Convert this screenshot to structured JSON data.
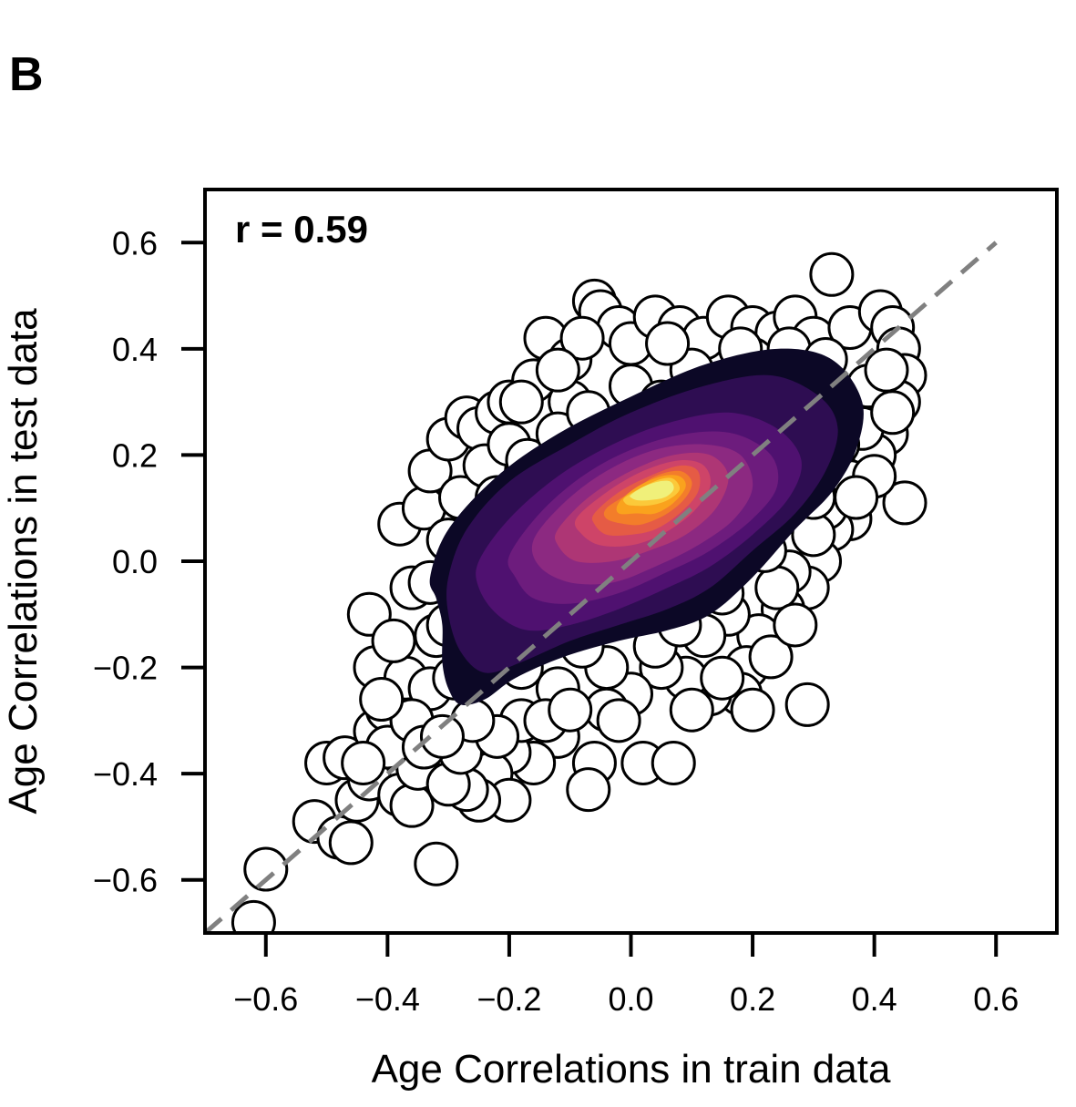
{
  "panel_label": "B",
  "chart_data": {
    "type": "scatter",
    "title": "",
    "xlabel": "Age Correlations in train data",
    "ylabel": "Age Correlations in test data",
    "xlim": [
      -0.7,
      0.7
    ],
    "ylim": [
      -0.7,
      0.7
    ],
    "xticks": [
      -0.6,
      -0.4,
      -0.2,
      0.0,
      0.2,
      0.4,
      0.6
    ],
    "yticks": [
      -0.6,
      -0.4,
      -0.2,
      0.0,
      0.2,
      0.4,
      0.6
    ],
    "xtick_labels": [
      "−0.6",
      "−0.4",
      "−0.2",
      "0.0",
      "0.2",
      "0.4",
      "0.6"
    ],
    "ytick_labels": [
      "−0.6",
      "−0.4",
      "−0.2",
      "0.0",
      "0.2",
      "0.4",
      "0.6"
    ],
    "annotation": "r = 0.59",
    "reference_line": {
      "x": [
        -0.7,
        0.6
      ],
      "y": [
        -0.7,
        0.6
      ],
      "style": "dashed",
      "color": "#808080"
    },
    "marker": {
      "face": "#ffffff",
      "edge": "#000000"
    },
    "grid": false,
    "density_colormap": [
      "#0c0826",
      "#2e0d52",
      "#4f1170",
      "#6d1c7d",
      "#8c2981",
      "#ae3675",
      "#ce4468",
      "#e55b45",
      "#f37d2a",
      "#faa21d",
      "#fbc93a",
      "#f0f07a"
    ],
    "points": [
      [
        -0.62,
        -0.68
      ],
      [
        -0.6,
        -0.58
      ],
      [
        -0.52,
        -0.49
      ],
      [
        -0.48,
        -0.52
      ],
      [
        -0.46,
        -0.53
      ],
      [
        -0.5,
        -0.38
      ],
      [
        -0.47,
        -0.37
      ],
      [
        -0.45,
        -0.45
      ],
      [
        -0.43,
        -0.41
      ],
      [
        -0.42,
        -0.32
      ],
      [
        -0.4,
        -0.28
      ],
      [
        -0.42,
        -0.2
      ],
      [
        -0.43,
        -0.1
      ],
      [
        -0.38,
        -0.44
      ],
      [
        -0.36,
        -0.46
      ],
      [
        -0.32,
        -0.57
      ],
      [
        -0.35,
        -0.39
      ],
      [
        -0.37,
        -0.22
      ],
      [
        -0.36,
        -0.05
      ],
      [
        -0.38,
        0.07
      ],
      [
        -0.34,
        0.1
      ],
      [
        -0.33,
        0.17
      ],
      [
        -0.3,
        0.23
      ],
      [
        -0.27,
        0.27
      ],
      [
        -0.25,
        0.25
      ],
      [
        -0.22,
        0.28
      ],
      [
        -0.2,
        0.3
      ],
      [
        -0.16,
        0.34
      ],
      [
        -0.14,
        0.42
      ],
      [
        -0.1,
        0.38
      ],
      [
        -0.06,
        0.49
      ],
      [
        -0.05,
        0.47
      ],
      [
        -0.02,
        0.44
      ],
      [
        0.0,
        0.41
      ],
      [
        0.04,
        0.46
      ],
      [
        0.08,
        0.44
      ],
      [
        0.12,
        0.42
      ],
      [
        0.16,
        0.46
      ],
      [
        0.2,
        0.44
      ],
      [
        0.24,
        0.43
      ],
      [
        0.27,
        0.46
      ],
      [
        0.3,
        0.42
      ],
      [
        0.33,
        0.54
      ],
      [
        0.36,
        0.44
      ],
      [
        0.41,
        0.47
      ],
      [
        0.43,
        0.44
      ],
      [
        0.44,
        0.4
      ],
      [
        0.45,
        0.35
      ],
      [
        0.44,
        0.3
      ],
      [
        0.42,
        0.24
      ],
      [
        0.4,
        0.2
      ],
      [
        0.45,
        0.11
      ],
      [
        0.36,
        0.08
      ],
      [
        0.33,
        0.06
      ],
      [
        0.31,
        0.0
      ],
      [
        0.29,
        -0.05
      ],
      [
        0.25,
        -0.09
      ],
      [
        0.21,
        -0.14
      ],
      [
        0.19,
        -0.2
      ],
      [
        0.18,
        -0.25
      ],
      [
        0.2,
        -0.28
      ],
      [
        0.29,
        -0.27
      ],
      [
        0.13,
        -0.25
      ],
      [
        0.09,
        -0.22
      ],
      [
        0.05,
        -0.2
      ],
      [
        0.0,
        -0.25
      ],
      [
        -0.04,
        -0.28
      ],
      [
        -0.06,
        -0.38
      ],
      [
        -0.07,
        -0.43
      ],
      [
        0.02,
        -0.38
      ],
      [
        0.07,
        -0.38
      ],
      [
        -0.12,
        -0.33
      ],
      [
        -0.16,
        -0.38
      ],
      [
        -0.2,
        -0.36
      ],
      [
        -0.23,
        -0.4
      ],
      [
        -0.2,
        -0.45
      ],
      [
        -0.25,
        -0.45
      ],
      [
        -0.27,
        -0.43
      ],
      [
        -0.3,
        -0.42
      ],
      [
        -0.28,
        -0.36
      ],
      [
        -0.3,
        -0.28
      ],
      [
        -0.33,
        -0.24
      ],
      [
        -0.32,
        -0.14
      ],
      [
        -0.33,
        -0.04
      ],
      [
        -0.3,
        0.04
      ],
      [
        -0.28,
        0.12
      ],
      [
        -0.24,
        0.18
      ],
      [
        -0.2,
        0.22
      ],
      [
        -0.1,
        0.3
      ],
      [
        0.0,
        0.33
      ],
      [
        0.1,
        0.36
      ],
      [
        0.2,
        0.38
      ],
      [
        0.3,
        0.35
      ],
      [
        0.35,
        0.3
      ],
      [
        0.38,
        0.25
      ],
      [
        0.36,
        0.15
      ],
      [
        0.32,
        0.1
      ],
      [
        0.3,
        0.05
      ],
      [
        0.26,
        -0.02
      ],
      [
        0.24,
        -0.05
      ],
      [
        0.16,
        -0.1
      ],
      [
        0.12,
        -0.14
      ],
      [
        0.04,
        -0.16
      ],
      [
        -0.04,
        -0.2
      ],
      [
        -0.12,
        -0.24
      ],
      [
        -0.18,
        -0.3
      ],
      [
        -0.22,
        -0.33
      ],
      [
        -0.26,
        -0.3
      ],
      [
        -0.29,
        -0.22
      ],
      [
        -0.3,
        -0.12
      ],
      [
        -0.29,
        -0.02
      ],
      [
        -0.26,
        0.05
      ],
      [
        -0.22,
        0.12
      ],
      [
        -0.17,
        0.19
      ],
      [
        -0.12,
        0.24
      ],
      [
        -0.07,
        0.28
      ],
      [
        0.05,
        0.3
      ],
      [
        0.15,
        0.33
      ],
      [
        0.25,
        0.32
      ],
      [
        0.34,
        0.22
      ],
      [
        0.3,
        0.12
      ],
      [
        0.22,
        0.02
      ],
      [
        0.15,
        -0.06
      ],
      [
        0.08,
        -0.12
      ],
      [
        -0.08,
        -0.16
      ],
      [
        -0.18,
        -0.2
      ],
      [
        -0.24,
        -0.15
      ],
      [
        -0.27,
        -0.08
      ],
      [
        0.39,
        0.33
      ],
      [
        0.42,
        0.36
      ],
      [
        0.43,
        0.28
      ],
      [
        0.4,
        0.16
      ],
      [
        0.37,
        0.12
      ],
      [
        -0.4,
        -0.35
      ],
      [
        -0.44,
        -0.38
      ],
      [
        -0.39,
        -0.15
      ],
      [
        -0.36,
        -0.3
      ],
      [
        -0.34,
        -0.35
      ],
      [
        -0.31,
        -0.33
      ],
      [
        -0.41,
        -0.26
      ],
      [
        -0.14,
        -0.3
      ],
      [
        -0.1,
        -0.28
      ],
      [
        -0.02,
        -0.3
      ],
      [
        0.1,
        -0.28
      ],
      [
        0.15,
        -0.22
      ],
      [
        0.23,
        -0.18
      ],
      [
        0.27,
        -0.12
      ],
      [
        -0.08,
        0.42
      ],
      [
        -0.12,
        0.36
      ],
      [
        -0.18,
        0.3
      ],
      [
        0.06,
        0.41
      ],
      [
        0.18,
        0.4
      ],
      [
        0.26,
        0.4
      ],
      [
        0.32,
        0.38
      ]
    ],
    "density_levels": [
      {
        "x": [
          -0.33,
          -0.3,
          -0.22,
          -0.12,
          0.0,
          0.12,
          0.24,
          0.33,
          0.38,
          0.37,
          0.33,
          0.27,
          0.2,
          0.13,
          0.06,
          -0.02,
          -0.11,
          -0.19,
          -0.24,
          -0.28,
          -0.3,
          -0.31,
          -0.31,
          -0.32
        ],
        "y": [
          -0.03,
          0.06,
          0.16,
          0.24,
          0.31,
          0.37,
          0.4,
          0.38,
          0.3,
          0.21,
          0.13,
          0.06,
          -0.03,
          -0.1,
          -0.13,
          -0.15,
          -0.18,
          -0.22,
          -0.26,
          -0.27,
          -0.24,
          -0.19,
          -0.12,
          -0.07
        ]
      },
      {
        "x": [
          -0.3,
          -0.27,
          -0.2,
          -0.1,
          0.0,
          0.12,
          0.23,
          0.31,
          0.34,
          0.32,
          0.27,
          0.2,
          0.13,
          0.06,
          -0.02,
          -0.1,
          -0.18,
          -0.24,
          -0.28,
          -0.3
        ],
        "y": [
          -0.03,
          0.06,
          0.15,
          0.22,
          0.28,
          0.33,
          0.35,
          0.31,
          0.25,
          0.17,
          0.09,
          0.02,
          -0.05,
          -0.09,
          -0.12,
          -0.15,
          -0.19,
          -0.21,
          -0.17,
          -0.1
        ]
      },
      {
        "x": [
          -0.25,
          -0.2,
          -0.12,
          -0.03,
          0.06,
          0.16,
          0.24,
          0.28,
          0.26,
          0.2,
          0.13,
          0.06,
          -0.02,
          -0.1,
          -0.17,
          -0.22,
          -0.25
        ],
        "y": [
          0.0,
          0.08,
          0.16,
          0.22,
          0.26,
          0.28,
          0.25,
          0.19,
          0.12,
          0.05,
          -0.01,
          -0.05,
          -0.09,
          -0.12,
          -0.13,
          -0.1,
          -0.05
        ]
      },
      {
        "x": [
          -0.2,
          -0.15,
          -0.08,
          0.0,
          0.09,
          0.17,
          0.23,
          0.24,
          0.2,
          0.13,
          0.06,
          -0.02,
          -0.1,
          -0.16,
          -0.19
        ],
        "y": [
          0.01,
          0.09,
          0.16,
          0.21,
          0.24,
          0.24,
          0.2,
          0.14,
          0.08,
          0.02,
          -0.02,
          -0.06,
          -0.08,
          -0.07,
          -0.03
        ]
      },
      {
        "x": [
          -0.16,
          -0.11,
          -0.04,
          0.04,
          0.12,
          0.18,
          0.2,
          0.17,
          0.11,
          0.04,
          -0.03,
          -0.1,
          -0.15
        ],
        "y": [
          0.04,
          0.11,
          0.17,
          0.21,
          0.22,
          0.2,
          0.14,
          0.08,
          0.03,
          -0.01,
          -0.04,
          -0.04,
          -0.01
        ]
      },
      {
        "x": [
          -0.12,
          -0.07,
          0.0,
          0.07,
          0.13,
          0.16,
          0.14,
          0.09,
          0.03,
          -0.03,
          -0.09,
          -0.12
        ],
        "y": [
          0.06,
          0.12,
          0.17,
          0.2,
          0.2,
          0.16,
          0.1,
          0.05,
          0.02,
          0.0,
          0.0,
          0.03
        ]
      },
      {
        "x": [
          -0.09,
          -0.04,
          0.02,
          0.08,
          0.12,
          0.13,
          0.1,
          0.05,
          0.0,
          -0.05,
          -0.08
        ],
        "y": [
          0.08,
          0.13,
          0.17,
          0.19,
          0.18,
          0.14,
          0.09,
          0.05,
          0.03,
          0.03,
          0.05
        ]
      },
      {
        "x": [
          -0.06,
          -0.02,
          0.03,
          0.08,
          0.11,
          0.11,
          0.08,
          0.04,
          0.0,
          -0.04,
          -0.06
        ],
        "y": [
          0.09,
          0.13,
          0.16,
          0.18,
          0.17,
          0.13,
          0.09,
          0.06,
          0.05,
          0.05,
          0.07
        ]
      },
      {
        "x": [
          -0.04,
          0.0,
          0.04,
          0.08,
          0.1,
          0.09,
          0.06,
          0.02,
          -0.01,
          -0.04
        ],
        "y": [
          0.1,
          0.13,
          0.16,
          0.17,
          0.15,
          0.12,
          0.09,
          0.07,
          0.07,
          0.08
        ]
      },
      {
        "x": [
          -0.02,
          0.01,
          0.05,
          0.08,
          0.09,
          0.07,
          0.04,
          0.01,
          -0.02
        ],
        "y": [
          0.11,
          0.14,
          0.16,
          0.16,
          0.14,
          0.11,
          0.09,
          0.09,
          0.09
        ]
      },
      {
        "x": [
          -0.01,
          0.02,
          0.05,
          0.07,
          0.08,
          0.06,
          0.03,
          0.0,
          -0.01
        ],
        "y": [
          0.12,
          0.14,
          0.155,
          0.155,
          0.135,
          0.115,
          0.105,
          0.105,
          0.11
        ]
      },
      {
        "x": [
          0.0,
          0.02,
          0.045,
          0.065,
          0.07,
          0.055,
          0.03,
          0.01,
          0.0
        ],
        "y": [
          0.125,
          0.14,
          0.15,
          0.15,
          0.135,
          0.12,
          0.115,
          0.115,
          0.12
        ]
      }
    ]
  }
}
